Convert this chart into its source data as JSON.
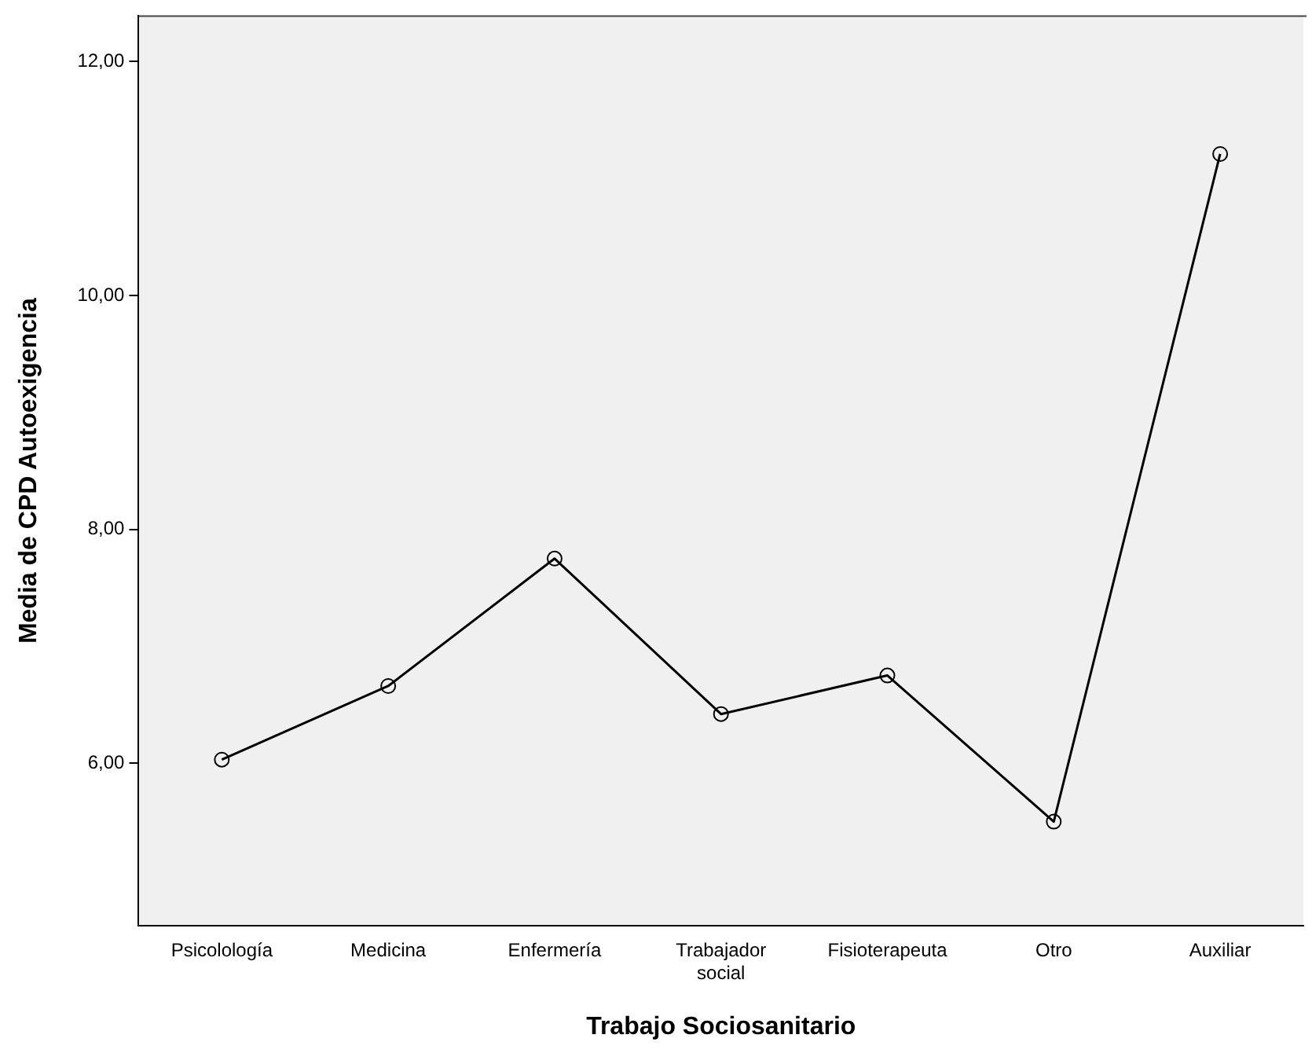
{
  "chart_data": {
    "type": "line",
    "xlabel": "Trabajo Sociosanitario",
    "ylabel": "Media de CPD Autoexigencia",
    "categories": [
      "Psicolología",
      "Medicina",
      "Enfermería",
      "Trabajador social",
      "Fisioterapeuta",
      "Otro",
      "Auxiliar"
    ],
    "series": [
      {
        "color": "#000000",
        "values": [
          6.03,
          6.66,
          7.75,
          6.42,
          6.75,
          5.5,
          11.21
        ]
      }
    ],
    "ylim": [
      4.61,
      12.39
    ],
    "yticks": [
      {
        "value": 6,
        "label": "6,00"
      },
      {
        "value": 8,
        "label": "8,00"
      },
      {
        "value": 10,
        "label": "10,00"
      },
      {
        "value": 12,
        "label": "12,00"
      }
    ],
    "grid": false,
    "legend": false,
    "marker": "circle",
    "line_style": "solid"
  }
}
